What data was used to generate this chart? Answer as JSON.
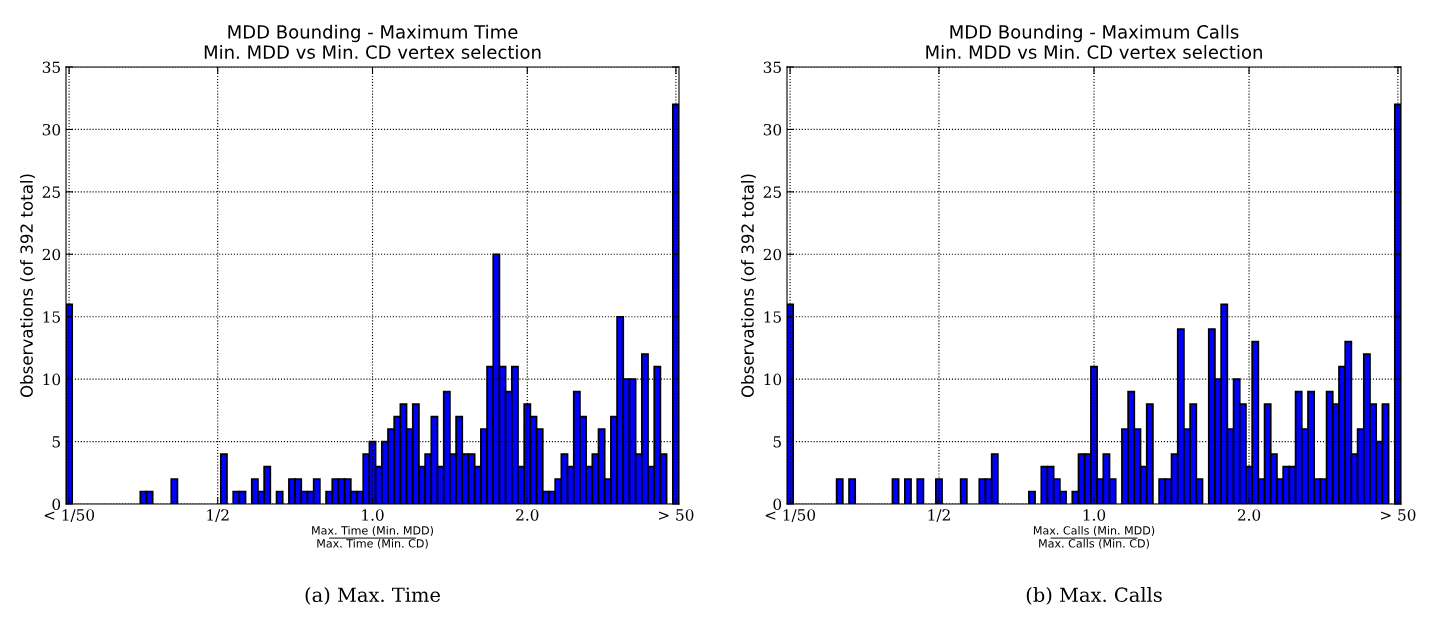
{
  "chart_data": [
    {
      "type": "bar",
      "title": "MDD Bounding - Maximum Time\nMin. MDD vs Min. CD vertex selection",
      "xlabel": "Max. Time (Min. MDD)\nMax. Time (Min. CD)",
      "ylabel": "Observations (of 392 total)",
      "annotations": [
        "(a) Max. Time"
      ],
      "color": "#0000ff",
      "categories": [
        "< 1/50",
        null,
        null,
        null,
        null,
        null,
        null,
        null,
        null,
        null,
        null,
        null,
        null,
        null,
        null,
        null,
        null,
        null,
        null,
        null,
        null,
        null,
        null,
        null,
        "1/2",
        null,
        null,
        null,
        null,
        null,
        null,
        null,
        null,
        null,
        null,
        null,
        null,
        null,
        null,
        null,
        null,
        null,
        null,
        null,
        null,
        null,
        null,
        null,
        null,
        "1.0",
        null,
        null,
        null,
        null,
        null,
        null,
        null,
        null,
        null,
        null,
        null,
        null,
        null,
        null,
        null,
        null,
        null,
        null,
        null,
        null,
        null,
        null,
        null,
        null,
        "2.0",
        null,
        null,
        null,
        null,
        null,
        null,
        null,
        null,
        null,
        null,
        null,
        null,
        null,
        null,
        null,
        null,
        null,
        null,
        null,
        null,
        null,
        null,
        null,
        "> 50"
      ],
      "values": [
        16,
        0,
        0,
        0,
        0,
        0,
        0,
        0,
        0,
        0,
        0,
        0,
        1,
        1,
        0,
        0,
        0,
        2,
        0,
        0,
        0,
        0,
        0,
        0,
        0,
        4,
        0,
        1,
        1,
        0,
        2,
        1,
        3,
        0,
        1,
        0,
        2,
        2,
        1,
        1,
        2,
        0,
        1,
        2,
        2,
        2,
        1,
        1,
        4,
        5,
        3,
        5,
        6,
        7,
        8,
        6,
        8,
        3,
        4,
        7,
        3,
        9,
        4,
        7,
        4,
        4,
        3,
        6,
        11,
        20,
        11,
        9,
        11,
        3,
        8,
        7,
        6,
        1,
        1,
        2,
        4,
        3,
        9,
        7,
        3,
        4,
        6,
        2,
        7,
        15,
        10,
        10,
        4,
        12,
        3,
        11,
        4,
        0,
        32
      ],
      "ylim": [
        0,
        35
      ],
      "yticks": [
        0,
        5,
        10,
        15,
        20,
        25,
        30,
        35
      ],
      "grid": true
    },
    {
      "type": "bar",
      "title": "MDD Bounding - Maximum Calls\nMin. MDD vs Min. CD vertex selection",
      "xlabel": "Max. Calls (Min. MDD)\nMax. Calls (Min. CD)",
      "ylabel": "Observations (of 392 total)",
      "annotations": [
        "(b) Max. Calls"
      ],
      "color": "#0000ff",
      "categories": [
        "< 1/50",
        null,
        null,
        null,
        null,
        null,
        null,
        null,
        null,
        null,
        null,
        null,
        null,
        null,
        null,
        null,
        null,
        null,
        null,
        null,
        null,
        null,
        null,
        null,
        "1/2",
        null,
        null,
        null,
        null,
        null,
        null,
        null,
        null,
        null,
        null,
        null,
        null,
        null,
        null,
        null,
        null,
        null,
        null,
        null,
        null,
        null,
        null,
        null,
        null,
        "1.0",
        null,
        null,
        null,
        null,
        null,
        null,
        null,
        null,
        null,
        null,
        null,
        null,
        null,
        null,
        null,
        null,
        null,
        null,
        null,
        null,
        null,
        null,
        null,
        null,
        "2.0",
        null,
        null,
        null,
        null,
        null,
        null,
        null,
        null,
        null,
        null,
        null,
        null,
        null,
        null,
        null,
        null,
        null,
        null,
        null,
        null,
        null,
        null,
        null,
        "> 50"
      ],
      "values": [
        16,
        0,
        0,
        0,
        0,
        0,
        0,
        0,
        2,
        0,
        2,
        0,
        0,
        0,
        0,
        0,
        0,
        2,
        0,
        2,
        0,
        2,
        0,
        0,
        2,
        0,
        0,
        0,
        2,
        0,
        0,
        2,
        2,
        4,
        0,
        0,
        0,
        0,
        0,
        1,
        0,
        3,
        3,
        2,
        1,
        0,
        1,
        4,
        4,
        11,
        2,
        4,
        2,
        0,
        6,
        9,
        6,
        3,
        8,
        0,
        2,
        2,
        4,
        14,
        6,
        8,
        2,
        0,
        14,
        10,
        16,
        6,
        10,
        8,
        3,
        13,
        2,
        8,
        4,
        2,
        3,
        3,
        9,
        6,
        9,
        2,
        2,
        9,
        8,
        11,
        13,
        4,
        6,
        12,
        8,
        5,
        8,
        0,
        32
      ],
      "ylim": [
        0,
        35
      ],
      "yticks": [
        0,
        5,
        10,
        15,
        20,
        25,
        30,
        35
      ],
      "grid": true
    }
  ]
}
